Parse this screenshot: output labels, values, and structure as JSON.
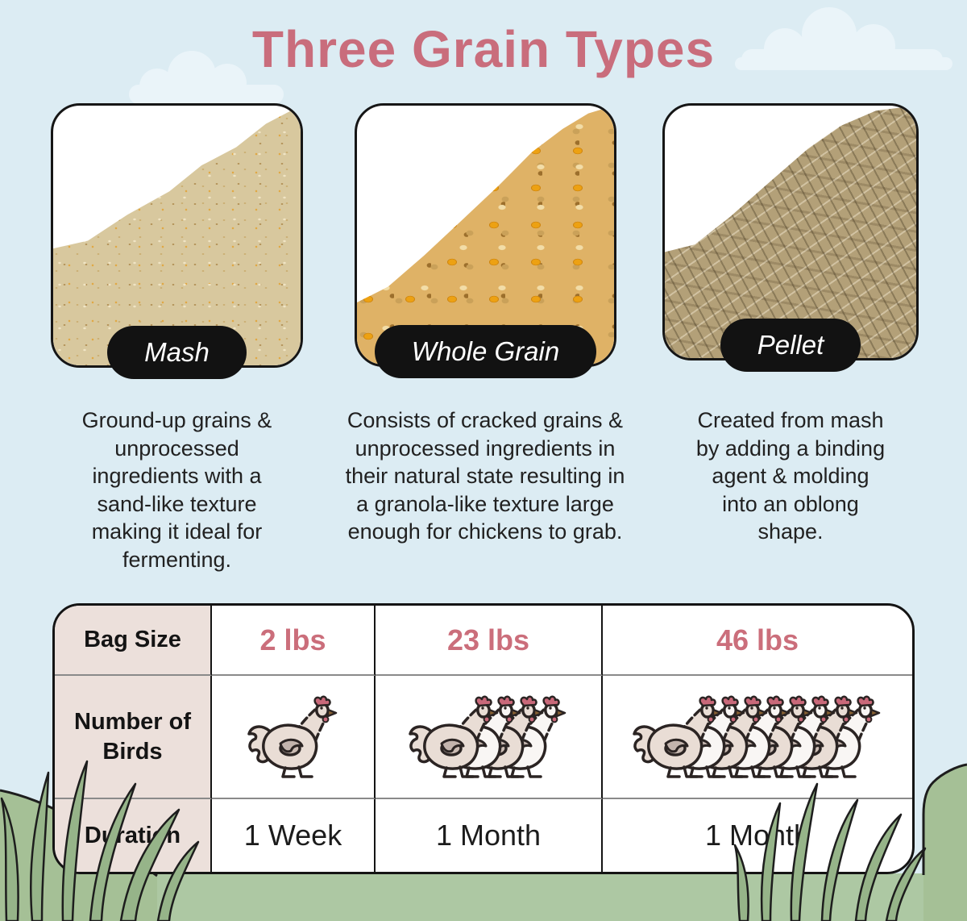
{
  "title": "Three Grain Types",
  "palette": {
    "background": "#dcecf3",
    "cloud": "#eaf4f9",
    "accent_pink": "#c96d7c",
    "value_pink": "#cb6e7b",
    "table_header_bg": "#ece0db",
    "ink": "#141414",
    "grass_band": "#adc8a3",
    "hill_green": "#a5c096",
    "blade_green": "#96b489",
    "comb_pink": "#c9697a"
  },
  "grain_cards": [
    {
      "label": "Mash",
      "description": "Ground-up grains & unprocessed ingredients with a sand-like texture making it ideal for fermenting."
    },
    {
      "label": "Whole Grain",
      "description": "Consists of cracked grains & unprocessed ingredients in their natural state resulting in a granola-like texture large enough for chickens to grab."
    },
    {
      "label": "Pellet",
      "description": "Created from mash by adding a binding agent & molding into an oblong shape."
    }
  ],
  "comparison_table": {
    "rows": [
      {
        "label": "Bag Size",
        "values": [
          "2 lbs",
          "23 lbs",
          "46 lbs"
        ]
      },
      {
        "label": "Number of Birds",
        "icon": "chicken-icon",
        "bird_counts": [
          1,
          4,
          8
        ]
      },
      {
        "label": "Duration",
        "values": [
          "1 Week",
          "1 Month",
          "1 Month"
        ]
      }
    ]
  }
}
